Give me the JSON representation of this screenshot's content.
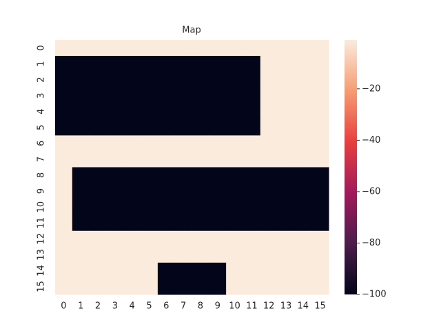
{
  "chart_data": {
    "type": "heatmap",
    "title": "Map",
    "x": [
      0,
      1,
      2,
      3,
      4,
      5,
      6,
      7,
      8,
      9,
      10,
      11,
      12,
      13,
      14,
      15
    ],
    "y": [
      0,
      1,
      2,
      3,
      4,
      5,
      6,
      7,
      8,
      9,
      10,
      11,
      12,
      13,
      14,
      15
    ],
    "z": [
      [
        -1,
        -1,
        -1,
        -1,
        -1,
        -1,
        -1,
        -1,
        -1,
        -1,
        -1,
        -1,
        -1,
        -1,
        -1,
        -1
      ],
      [
        -100,
        -100,
        -100,
        -100,
        -100,
        -100,
        -100,
        -100,
        -100,
        -100,
        -100,
        -100,
        -1,
        -1,
        -1,
        -1
      ],
      [
        -100,
        -100,
        -100,
        -100,
        -100,
        -100,
        -100,
        -100,
        -100,
        -100,
        -100,
        -100,
        -1,
        -1,
        -1,
        -1
      ],
      [
        -100,
        -100,
        -100,
        -100,
        -100,
        -100,
        -100,
        -100,
        -100,
        -100,
        -100,
        -100,
        -1,
        -1,
        -1,
        -1
      ],
      [
        -100,
        -100,
        -100,
        -100,
        -100,
        -100,
        -100,
        -100,
        -100,
        -100,
        -100,
        -100,
        -1,
        -1,
        -1,
        -1
      ],
      [
        -100,
        -100,
        -100,
        -100,
        -100,
        -100,
        -100,
        -100,
        -100,
        -100,
        -100,
        -100,
        -1,
        -1,
        -1,
        -1
      ],
      [
        -1,
        -1,
        -1,
        -1,
        -1,
        -1,
        -1,
        -1,
        -1,
        -1,
        -1,
        -1,
        -1,
        -1,
        -1,
        -1
      ],
      [
        -1,
        -1,
        -1,
        -1,
        -1,
        -1,
        -1,
        -1,
        -1,
        -1,
        -1,
        -1,
        -1,
        -1,
        -1,
        -1
      ],
      [
        -1,
        -100,
        -100,
        -100,
        -100,
        -100,
        -100,
        -100,
        -100,
        -100,
        -100,
        -100,
        -100,
        -100,
        -100,
        -100
      ],
      [
        -1,
        -100,
        -100,
        -100,
        -100,
        -100,
        -100,
        -100,
        -100,
        -100,
        -100,
        -100,
        -100,
        -100,
        -100,
        -100
      ],
      [
        -1,
        -100,
        -100,
        -100,
        -100,
        -100,
        -100,
        -100,
        -100,
        -100,
        -100,
        -100,
        -100,
        -100,
        -100,
        -100
      ],
      [
        -1,
        -100,
        -100,
        -100,
        -100,
        -100,
        -100,
        -100,
        -100,
        -100,
        -100,
        -100,
        -100,
        -100,
        -100,
        -100
      ],
      [
        -1,
        -1,
        -1,
        -1,
        -1,
        -1,
        -1,
        -1,
        -1,
        -1,
        -1,
        -1,
        -1,
        -1,
        -1,
        -1
      ],
      [
        -1,
        -1,
        -1,
        -1,
        -1,
        -1,
        -1,
        -1,
        -1,
        -1,
        -1,
        -1,
        -1,
        -1,
        -1,
        -1
      ],
      [
        -1,
        -1,
        -1,
        -1,
        -1,
        -1,
        -100,
        -100,
        -100,
        -100,
        -1,
        -1,
        -1,
        -1,
        -1,
        -1
      ],
      [
        -1,
        -1,
        -1,
        -1,
        -1,
        -1,
        -100,
        -100,
        -100,
        -100,
        -1,
        -1,
        -1,
        -1,
        -1,
        -1
      ]
    ],
    "zlim": [
      -100,
      -1
    ],
    "zticks": [
      {
        "value": -20,
        "label": "−20"
      },
      {
        "value": -40,
        "label": "−40"
      },
      {
        "value": -60,
        "label": "−60"
      },
      {
        "value": -80,
        "label": "−80"
      },
      {
        "value": -100,
        "label": "−100"
      }
    ],
    "colorscale": [
      "#03051a",
      "#4c1d4b",
      "#a11a5b",
      "#e83f3f",
      "#f69c73",
      "#faebdd"
    ]
  }
}
